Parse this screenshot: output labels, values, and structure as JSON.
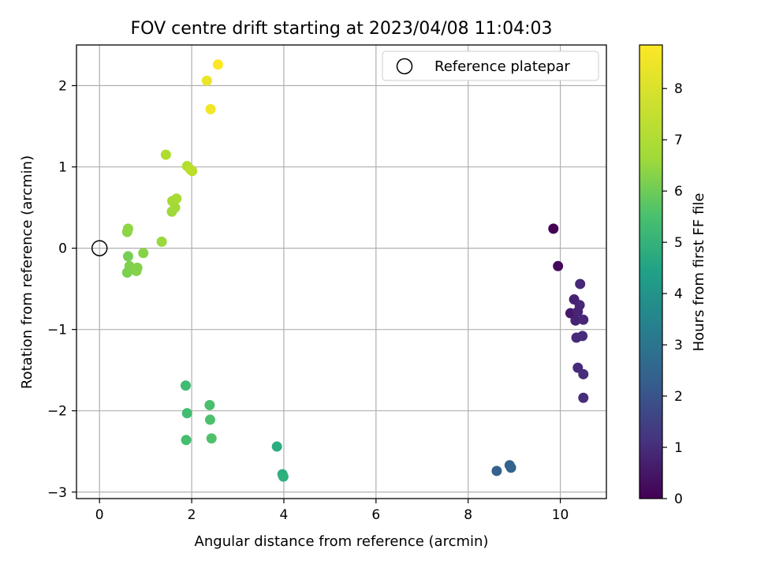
{
  "chart_data": {
    "type": "scatter",
    "title": "FOV centre drift starting at 2023/04/08 11:04:03",
    "xlabel": "Angular distance from reference (arcmin)",
    "ylabel": "Rotation from reference (arcmin)",
    "xlim": [
      -0.5,
      11.0
    ],
    "ylim": [
      -3.08,
      2.5
    ],
    "xticks": [
      0,
      2,
      4,
      6,
      8,
      10
    ],
    "yticks": [
      -3,
      -2,
      -1,
      0,
      1,
      2
    ],
    "grid": true,
    "legend": {
      "placement": "top-right",
      "entries": [
        "Reference platepar"
      ]
    },
    "reference_point": {
      "x": 0,
      "y": 0,
      "label": "Reference platepar"
    },
    "colorbar": {
      "label": "Hours from first FF file",
      "range": [
        0,
        8.85
      ],
      "ticks": [
        0,
        1,
        2,
        3,
        4,
        5,
        6,
        7,
        8
      ],
      "colormap": "viridis"
    },
    "points": [
      {
        "x": 9.85,
        "y": 0.24,
        "h": 0.0
      },
      {
        "x": 9.95,
        "y": -0.22,
        "h": 0.2
      },
      {
        "x": 10.22,
        "y": -0.8,
        "h": 0.6
      },
      {
        "x": 10.3,
        "y": -0.63,
        "h": 0.8
      },
      {
        "x": 10.33,
        "y": -0.89,
        "h": 0.85
      },
      {
        "x": 10.38,
        "y": -0.78,
        "h": 0.9
      },
      {
        "x": 10.42,
        "y": -0.7,
        "h": 0.95
      },
      {
        "x": 10.43,
        "y": -0.44,
        "h": 1.0
      },
      {
        "x": 10.5,
        "y": -0.88,
        "h": 0.95
      },
      {
        "x": 10.35,
        "y": -1.1,
        "h": 1.05
      },
      {
        "x": 10.48,
        "y": -1.08,
        "h": 1.1
      },
      {
        "x": 10.38,
        "y": -1.47,
        "h": 1.05
      },
      {
        "x": 10.5,
        "y": -1.55,
        "h": 1.1
      },
      {
        "x": 10.5,
        "y": -1.84,
        "h": 1.15
      },
      {
        "x": 8.62,
        "y": -2.74,
        "h": 2.75
      },
      {
        "x": 8.9,
        "y": -2.67,
        "h": 2.8
      },
      {
        "x": 8.93,
        "y": -2.7,
        "h": 2.85
      },
      {
        "x": 3.85,
        "y": -2.44,
        "h": 5.5
      },
      {
        "x": 3.97,
        "y": -2.78,
        "h": 5.6
      },
      {
        "x": 3.99,
        "y": -2.81,
        "h": 5.65
      },
      {
        "x": 1.87,
        "y": -1.69,
        "h": 6.1
      },
      {
        "x": 1.9,
        "y": -2.03,
        "h": 6.15
      },
      {
        "x": 1.88,
        "y": -2.36,
        "h": 6.2
      },
      {
        "x": 2.39,
        "y": -1.93,
        "h": 6.25
      },
      {
        "x": 2.4,
        "y": -2.11,
        "h": 6.3
      },
      {
        "x": 2.43,
        "y": -2.34,
        "h": 6.35
      },
      {
        "x": 0.62,
        "y": -0.1,
        "h": 7.0
      },
      {
        "x": 0.6,
        "y": -0.3,
        "h": 7.05
      },
      {
        "x": 0.65,
        "y": -0.22,
        "h": 7.1
      },
      {
        "x": 0.72,
        "y": -0.26,
        "h": 7.15
      },
      {
        "x": 0.8,
        "y": -0.28,
        "h": 7.2
      },
      {
        "x": 0.82,
        "y": -0.24,
        "h": 7.2
      },
      {
        "x": 0.95,
        "y": -0.06,
        "h": 7.25
      },
      {
        "x": 0.6,
        "y": 0.2,
        "h": 7.3
      },
      {
        "x": 0.62,
        "y": 0.24,
        "h": 7.35
      },
      {
        "x": 1.35,
        "y": 0.08,
        "h": 7.5
      },
      {
        "x": 1.57,
        "y": 0.45,
        "h": 7.55
      },
      {
        "x": 1.64,
        "y": 0.5,
        "h": 7.6
      },
      {
        "x": 1.58,
        "y": 0.58,
        "h": 7.65
      },
      {
        "x": 1.67,
        "y": 0.61,
        "h": 7.7
      },
      {
        "x": 1.44,
        "y": 1.15,
        "h": 7.8
      },
      {
        "x": 1.9,
        "y": 1.01,
        "h": 7.85
      },
      {
        "x": 1.97,
        "y": 0.97,
        "h": 7.9
      },
      {
        "x": 2.01,
        "y": 0.95,
        "h": 7.95
      },
      {
        "x": 2.33,
        "y": 2.06,
        "h": 8.6
      },
      {
        "x": 2.41,
        "y": 1.71,
        "h": 8.7
      },
      {
        "x": 2.57,
        "y": 2.26,
        "h": 8.85
      }
    ]
  }
}
